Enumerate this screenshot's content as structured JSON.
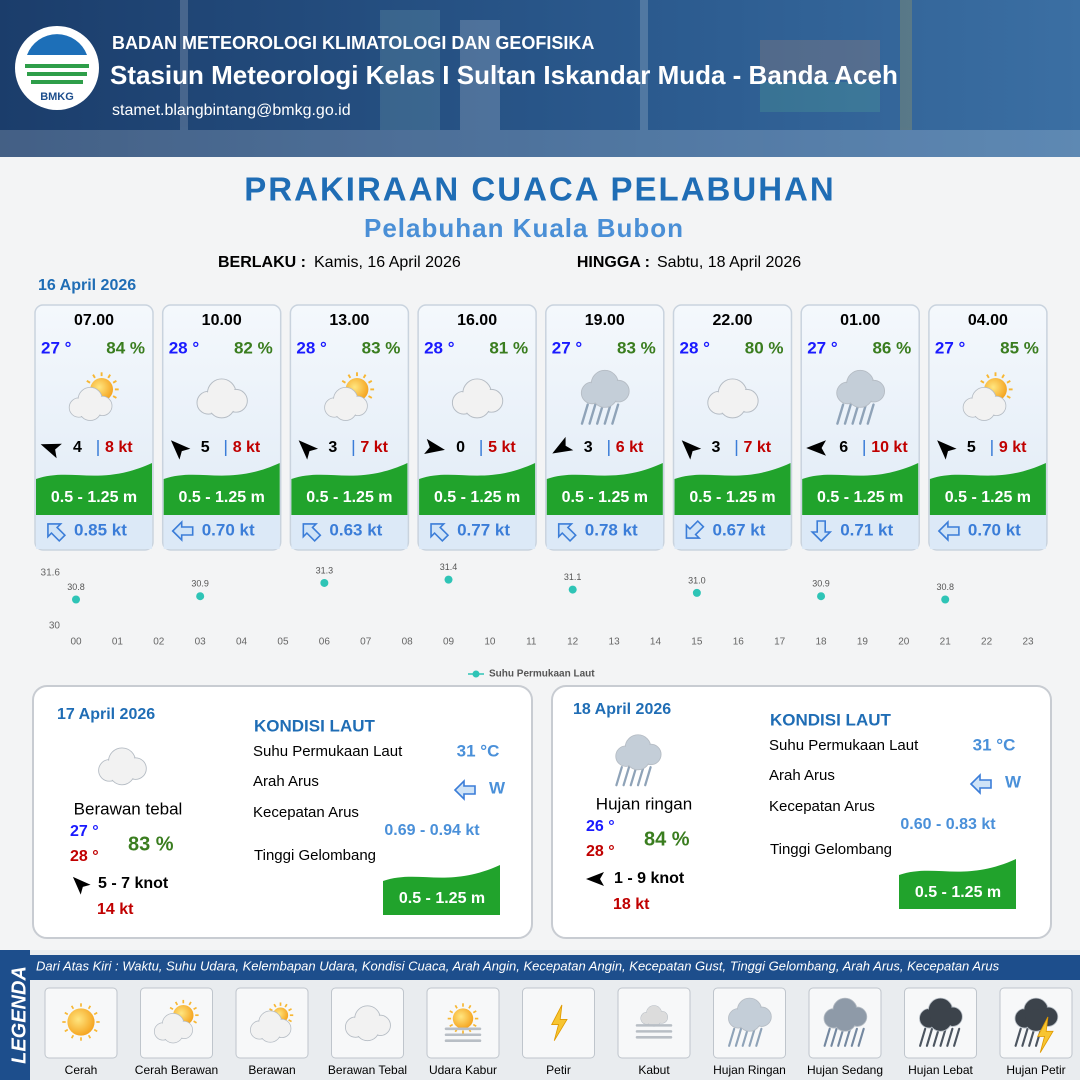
{
  "header": {
    "logo": "BMKG",
    "agency": "BADAN METEOROLOGI KLIMATOLOGI DAN GEOFISIKA",
    "station": "Stasiun Meteorologi Kelas I Sultan Iskandar Muda - Banda Aceh",
    "email": "stamet.blangbintang@bmkg.go.id"
  },
  "title": "PRAKIRAAN CUACA PELABUHAN",
  "subtitle": "Pelabuhan Kuala Bubon",
  "valid_from_label": "BERLAKU :",
  "valid_from": "Kamis, 16 April 2026",
  "valid_to_label": "HINGGA :",
  "valid_to": "Sabtu, 18 April 2026",
  "day1": {
    "date": "16 April 2026",
    "cards": [
      {
        "time": "07.00",
        "temp": "27 °",
        "humidity": "84 %",
        "wind": 4,
        "gust": "8 kt",
        "wave": "0.5 - 1.25 m",
        "current": "0.85 kt"
      },
      {
        "time": "10.00",
        "temp": "28 °",
        "humidity": "82 %",
        "wind": 5,
        "gust": "8 kt",
        "wave": "0.5 - 1.25 m",
        "current": "0.70 kt"
      },
      {
        "time": "13.00",
        "temp": "28 °",
        "humidity": "83 %",
        "wind": 3,
        "gust": "7 kt",
        "wave": "0.5 - 1.25 m",
        "current": "0.63 kt"
      },
      {
        "time": "16.00",
        "temp": "28 °",
        "humidity": "81 %",
        "wind": 0,
        "gust": "5 kt",
        "wave": "0.5 - 1.25 m",
        "current": "0.77 kt"
      },
      {
        "time": "19.00",
        "temp": "27 °",
        "humidity": "83 %",
        "wind": 3,
        "gust": "6 kt",
        "wave": "0.5 - 1.25 m",
        "current": "0.78 kt"
      },
      {
        "time": "22.00",
        "temp": "28 °",
        "humidity": "80 %",
        "wind": 3,
        "gust": "7 kt",
        "wave": "0.5 - 1.25 m",
        "current": "0.67 kt"
      },
      {
        "time": "01.00",
        "temp": "27 °",
        "humidity": "86 %",
        "wind": 6,
        "gust": "10 kt",
        "wave": "0.5 - 1.25 m",
        "current": "0.71 kt"
      },
      {
        "time": "04.00",
        "temp": "27 °",
        "humidity": "85 %",
        "wind": 5,
        "gust": "9 kt",
        "wave": "0.5 - 1.25 m",
        "current": "0.70 kt"
      }
    ]
  },
  "chart_data": {
    "type": "scatter",
    "x": [
      0,
      3,
      6,
      9,
      12,
      15,
      18,
      21
    ],
    "series": [
      {
        "name": "Suhu Permukaan Laut",
        "color": "#2ec4b6",
        "values": [
          30.8,
          30.9,
          31.3,
          31.4,
          31.1,
          31.0,
          30.9,
          30.8
        ],
        "value_labels": [
          "30.8",
          "30.9",
          "31.3",
          "31.4",
          "31.1",
          "31.0",
          "30.9",
          "30.8"
        ]
      }
    ],
    "xlim": [
      0,
      23
    ],
    "xticks": [
      {
        "value": 0,
        "label": "00"
      },
      {
        "value": 1,
        "label": "01"
      },
      {
        "value": 2,
        "label": "02"
      },
      {
        "value": 3,
        "label": "03"
      },
      {
        "value": 4,
        "label": "04"
      },
      {
        "value": 5,
        "label": "05"
      },
      {
        "value": 6,
        "label": "06"
      },
      {
        "value": 7,
        "label": "07"
      },
      {
        "value": 8,
        "label": "08"
      },
      {
        "value": 9,
        "label": "09"
      },
      10,
      11,
      12,
      13,
      14,
      15,
      16,
      17,
      18,
      19,
      20,
      21,
      22,
      23
    ],
    "ylim": [
      30,
      31.6
    ],
    "yticks": [
      30,
      31.6
    ],
    "grid": false,
    "legend": "bottom"
  },
  "days": [
    {
      "date": "17 April 2026",
      "condition": "Berawan tebal",
      "temp_min": "27 °",
      "temp_max": "28 °",
      "humidity": "83 %",
      "wind": "5 - 7 knot",
      "gust": "14 kt",
      "sea": {
        "title": "KONDISI LAUT",
        "sst_label": "Suhu Permukaan Laut",
        "sst": "31 °C",
        "current_dir_label": "Arah Arus",
        "current_dir": "W",
        "speed_label": "Kecepatan Arus",
        "speed": "0.69 - 0.94 kt",
        "wave_label": "Tinggi Gelombang",
        "wave": "0.5 - 1.25 m"
      }
    },
    {
      "date": "18 April 2026",
      "condition": "Hujan ringan",
      "temp_min": "26 °",
      "temp_max": "28 °",
      "humidity": "84 %",
      "wind": "1 - 9 knot",
      "gust": "18 kt",
      "sea": {
        "title": "KONDISI LAUT",
        "sst_label": "Suhu Permukaan Laut",
        "sst": "31 °C",
        "current_dir_label": "Arah Arus",
        "current_dir": "W",
        "speed_label": "Kecepatan Arus",
        "speed": "0.60 - 0.83 kt",
        "wave_label": "Tinggi Gelombang",
        "wave": "0.5 - 1.25 m"
      }
    }
  ],
  "legend": {
    "title": "LEGENDA",
    "description": "Dari Atas Kiri : Waktu, Suhu Udara, Kelembapan Udara, Kondisi Cuaca, Arah Angin, Kecepatan Angin, Kecepatan Gust, Tinggi Gelombang, Arah Arus, Kecepatan Arus",
    "items": [
      "Cerah",
      "Cerah Berawan",
      "Berawan",
      "Berawan Tebal",
      "Udara Kabur",
      "Petir",
      "Kabut",
      "Hujan Ringan",
      "Hujan Sedang",
      "Hujan Lebat",
      "Hujan Petir"
    ]
  }
}
